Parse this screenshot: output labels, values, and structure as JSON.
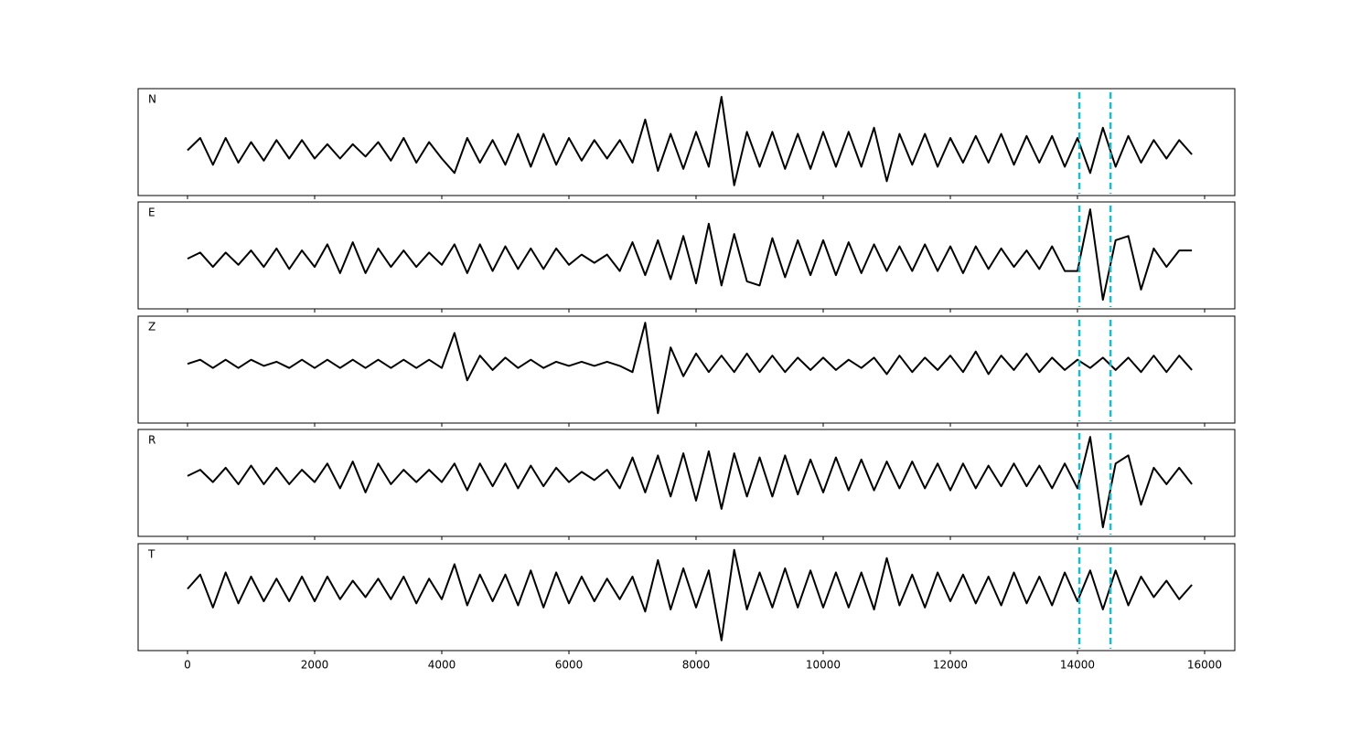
{
  "chart_data": {
    "type": "line",
    "line_color": "#000000",
    "vline_color": "#17becf",
    "vlines": [
      14030,
      14520
    ],
    "xlim": [
      -777,
      16475
    ],
    "xticks": [
      0,
      2000,
      4000,
      6000,
      8000,
      10000,
      12000,
      14000,
      16000
    ],
    "x": [
      0,
      200,
      400,
      600,
      800,
      1000,
      1200,
      1400,
      1600,
      1800,
      2000,
      2200,
      2400,
      2600,
      2800,
      3000,
      3200,
      3400,
      3600,
      3800,
      4000,
      4200,
      4400,
      4600,
      4800,
      5000,
      5200,
      5400,
      5600,
      5800,
      6000,
      6200,
      6400,
      6600,
      6800,
      7000,
      7200,
      7400,
      7600,
      7800,
      8000,
      8200,
      8400,
      8600,
      8800,
      9000,
      9200,
      9400,
      9600,
      9800,
      10000,
      10200,
      10400,
      10600,
      10800,
      11000,
      11200,
      11400,
      11600,
      11800,
      12000,
      12200,
      12400,
      12600,
      12800,
      13000,
      13200,
      13400,
      13600,
      13800,
      14000,
      14200,
      14400,
      14600,
      14800,
      15000,
      15200,
      15400,
      15600,
      15800
    ],
    "panels": [
      {
        "label": "N",
        "ylim": [
          -1.1,
          1.5
        ],
        "values": [
          0,
          0.3,
          -0.35,
          0.3,
          -0.3,
          0.2,
          -0.25,
          0.25,
          -0.2,
          0.25,
          -0.2,
          0.15,
          -0.2,
          0.15,
          -0.15,
          0.2,
          -0.25,
          0.3,
          -0.3,
          0.2,
          -0.2,
          -0.55,
          0.3,
          -0.3,
          0.25,
          -0.35,
          0.4,
          -0.4,
          0.4,
          -0.35,
          0.3,
          -0.25,
          0.25,
          -0.2,
          0.25,
          -0.3,
          0.75,
          -0.5,
          0.4,
          -0.45,
          0.45,
          -0.4,
          1.3,
          -0.85,
          0.45,
          -0.4,
          0.45,
          -0.45,
          0.4,
          -0.45,
          0.45,
          -0.4,
          0.45,
          -0.4,
          0.55,
          -0.75,
          0.4,
          -0.35,
          0.4,
          -0.4,
          0.3,
          -0.3,
          0.35,
          -0.3,
          0.4,
          -0.35,
          0.35,
          -0.3,
          0.35,
          -0.4,
          0.3,
          -0.55,
          0.55,
          -0.4,
          0.35,
          -0.3,
          0.25,
          -0.2,
          0.25,
          -0.1
        ]
      },
      {
        "label": "E",
        "ylim": [
          -1.22,
          1.38
        ],
        "values": [
          0,
          0.15,
          -0.2,
          0.15,
          -0.15,
          0.2,
          -0.2,
          0.25,
          -0.25,
          0.2,
          -0.2,
          0.35,
          -0.35,
          0.4,
          -0.35,
          0.25,
          -0.2,
          0.2,
          -0.2,
          0.15,
          -0.15,
          0.35,
          -0.35,
          0.35,
          -0.3,
          0.3,
          -0.25,
          0.25,
          -0.25,
          0.25,
          -0.15,
          0.1,
          -0.1,
          0.1,
          -0.3,
          0.4,
          -0.4,
          0.45,
          -0.5,
          0.55,
          -0.6,
          0.85,
          -0.65,
          0.6,
          -0.55,
          -0.65,
          0.5,
          -0.45,
          0.45,
          -0.4,
          0.45,
          -0.4,
          0.4,
          -0.35,
          0.35,
          -0.3,
          0.3,
          -0.3,
          0.35,
          -0.3,
          0.3,
          -0.35,
          0.3,
          -0.25,
          0.25,
          -0.2,
          0.2,
          -0.25,
          0.3,
          -0.3,
          -0.3,
          1.2,
          -1.0,
          0.45,
          0.55,
          -0.75,
          0.25,
          -0.2,
          0.2,
          0.2
        ]
      },
      {
        "label": "Z",
        "ylim": [
          -1.44,
          1.16
        ],
        "values": [
          0,
          0.1,
          -0.1,
          0.1,
          -0.1,
          0.1,
          -0.05,
          0.05,
          -0.1,
          0.1,
          -0.1,
          0.1,
          -0.1,
          0.1,
          -0.1,
          0.1,
          -0.1,
          0.1,
          -0.1,
          0.1,
          -0.1,
          0.75,
          -0.4,
          0.2,
          -0.15,
          0.15,
          -0.1,
          0.1,
          -0.1,
          0.05,
          -0.05,
          0.05,
          -0.05,
          0.05,
          -0.05,
          -0.2,
          1.0,
          -1.2,
          0.4,
          -0.3,
          0.25,
          -0.2,
          0.2,
          -0.2,
          0.25,
          -0.2,
          0.2,
          -0.2,
          0.15,
          -0.15,
          0.15,
          -0.15,
          0.1,
          -0.1,
          0.15,
          -0.25,
          0.2,
          -0.2,
          0.15,
          -0.15,
          0.2,
          -0.2,
          0.3,
          -0.25,
          0.2,
          -0.15,
          0.25,
          -0.2,
          0.15,
          -0.15,
          0.1,
          -0.1,
          0.15,
          -0.15,
          0.15,
          -0.2,
          0.2,
          -0.2,
          0.2,
          -0.15
        ]
      },
      {
        "label": "R",
        "ylim": [
          -1.47,
          1.13
        ],
        "values": [
          0,
          0.15,
          -0.15,
          0.2,
          -0.2,
          0.25,
          -0.2,
          0.2,
          -0.2,
          0.15,
          -0.15,
          0.3,
          -0.3,
          0.35,
          -0.4,
          0.3,
          -0.2,
          0.15,
          -0.15,
          0.15,
          -0.15,
          0.3,
          -0.35,
          0.3,
          -0.25,
          0.3,
          -0.3,
          0.25,
          -0.25,
          0.2,
          -0.15,
          0.1,
          -0.1,
          0.15,
          -0.3,
          0.45,
          -0.4,
          0.5,
          -0.5,
          0.55,
          -0.6,
          0.6,
          -0.8,
          0.55,
          -0.5,
          0.45,
          -0.5,
          0.5,
          -0.45,
          0.4,
          -0.4,
          0.45,
          -0.35,
          0.4,
          -0.35,
          0.35,
          -0.3,
          0.35,
          -0.3,
          0.3,
          -0.35,
          0.3,
          -0.3,
          0.25,
          -0.25,
          0.3,
          -0.25,
          0.25,
          -0.3,
          0.3,
          -0.3,
          0.95,
          -1.25,
          0.3,
          0.5,
          -0.7,
          0.2,
          -0.2,
          0.2,
          -0.2
        ]
      },
      {
        "label": "T",
        "ylim": [
          -1.5,
          1.1
        ],
        "values": [
          0,
          0.35,
          -0.45,
          0.4,
          -0.35,
          0.3,
          -0.3,
          0.25,
          -0.3,
          0.3,
          -0.3,
          0.3,
          -0.25,
          0.2,
          -0.2,
          0.25,
          -0.25,
          0.3,
          -0.35,
          0.25,
          -0.25,
          0.6,
          -0.4,
          0.35,
          -0.3,
          0.35,
          -0.4,
          0.45,
          -0.45,
          0.4,
          -0.35,
          0.3,
          -0.3,
          0.25,
          -0.25,
          0.3,
          -0.55,
          0.7,
          -0.5,
          0.5,
          -0.45,
          0.45,
          -1.25,
          0.95,
          -0.5,
          0.4,
          -0.45,
          0.5,
          -0.45,
          0.45,
          -0.45,
          0.4,
          -0.45,
          0.4,
          -0.5,
          0.75,
          -0.4,
          0.35,
          -0.45,
          0.4,
          -0.3,
          0.35,
          -0.35,
          0.3,
          -0.4,
          0.4,
          -0.35,
          0.3,
          -0.4,
          0.4,
          -0.3,
          0.45,
          -0.5,
          0.45,
          -0.4,
          0.3,
          -0.2,
          0.2,
          -0.25,
          0.1
        ]
      }
    ]
  }
}
